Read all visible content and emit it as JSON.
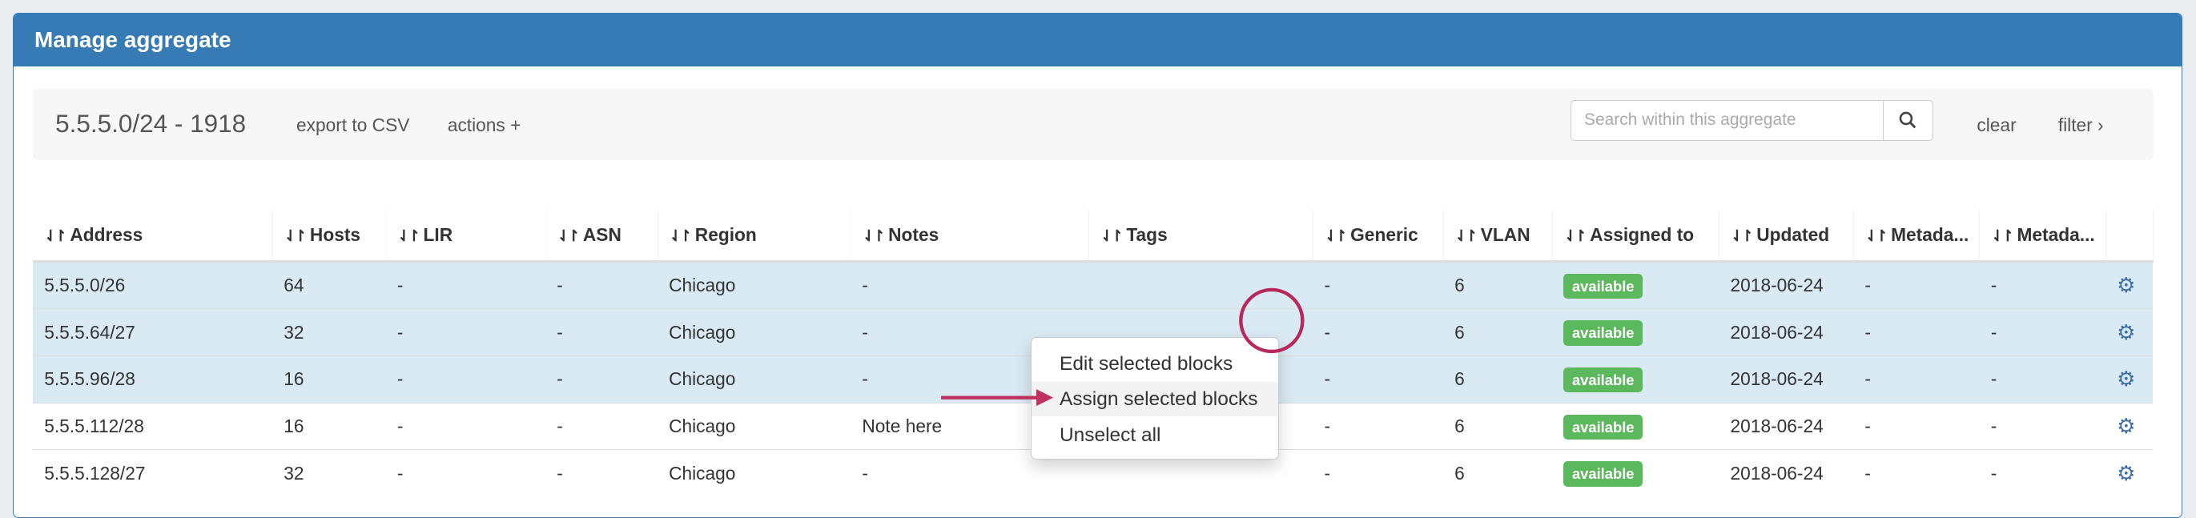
{
  "panel": {
    "title": "Manage aggregate"
  },
  "toolbar": {
    "aggregate": "5.5.5.0/24 - 1918",
    "export": "export to CSV",
    "actions": "actions +",
    "search_placeholder": "Search within this aggregate",
    "search_icon": "magnifier-icon",
    "clear": "clear",
    "filter": "filter ›"
  },
  "table": {
    "columns": [
      "Address",
      "Hosts",
      "LIR",
      "ASN",
      "Region",
      "Notes",
      "Tags",
      "Generic",
      "VLAN",
      "Assigned to",
      "Updated",
      "Metada...",
      "Metada..."
    ],
    "sort_icon": "⇃↾",
    "rows": [
      {
        "selected": true,
        "cells": [
          "5.5.5.0/26",
          "64",
          "-",
          "-",
          "Chicago",
          "-",
          "",
          "-",
          "6",
          "available",
          "2018-06-24",
          "-",
          "-"
        ]
      },
      {
        "selected": true,
        "cells": [
          "5.5.5.64/27",
          "32",
          "-",
          "-",
          "Chicago",
          "-",
          "",
          "-",
          "6",
          "available",
          "2018-06-24",
          "-",
          "-"
        ]
      },
      {
        "selected": true,
        "cells": [
          "5.5.5.96/28",
          "16",
          "-",
          "-",
          "Chicago",
          "-",
          "",
          "-",
          "6",
          "available",
          "2018-06-24",
          "-",
          "-"
        ]
      },
      {
        "selected": false,
        "cells": [
          "5.5.5.112/28",
          "16",
          "-",
          "-",
          "Chicago",
          "Note here",
          "",
          "-",
          "6",
          "available",
          "2018-06-24",
          "-",
          "-"
        ]
      },
      {
        "selected": false,
        "cells": [
          "5.5.5.128/27",
          "32",
          "-",
          "-",
          "Chicago",
          "-",
          "",
          "-",
          "6",
          "available",
          "2018-06-24",
          "-",
          "-"
        ]
      }
    ]
  },
  "context_menu": {
    "items": [
      "Edit selected blocks",
      "Assign selected blocks",
      "Unselect all"
    ],
    "highlighted": "Assign selected blocks"
  },
  "colors": {
    "header": "#377bb5",
    "selected_row": "#d9eaf5",
    "badge": "#5cb85c",
    "annotation": "#c0315f"
  }
}
